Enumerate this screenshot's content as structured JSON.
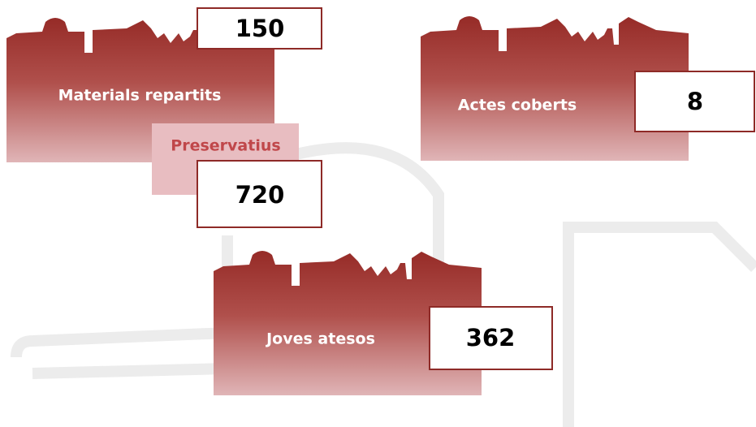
{
  "cards": [
    {
      "label": "Materials repartits",
      "value": "150",
      "sub_label": "Preservatius",
      "sub_value": "720"
    },
    {
      "label": "Actes coberts",
      "value": "8"
    },
    {
      "label": "Joves atesos",
      "value": "362"
    }
  ]
}
